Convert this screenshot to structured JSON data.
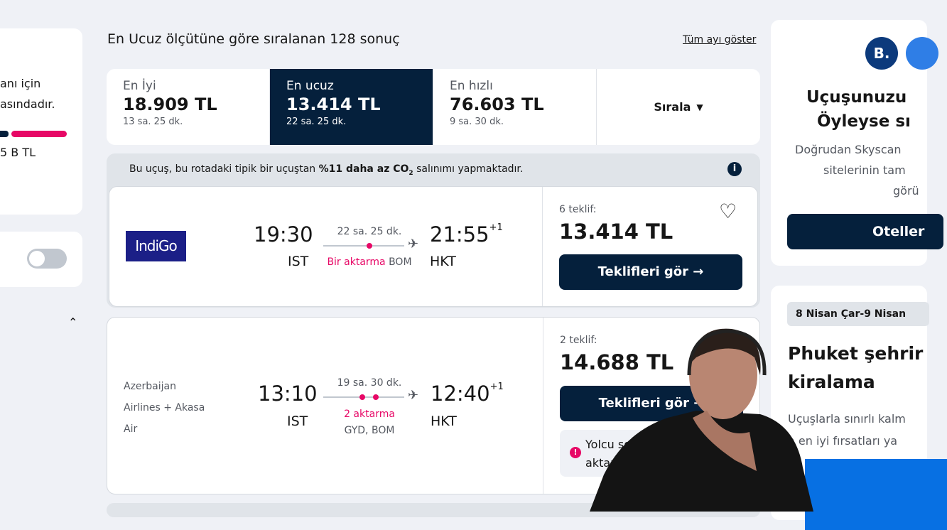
{
  "left_panel": {
    "line1": "anı için",
    "line2": "asındadır.",
    "price_range": "5 B TL",
    "colors": {
      "bar_dark": "#05203c",
      "bar_pink": "#e70866"
    }
  },
  "results_heading": "En Ucuz ölçütüne göre sıralanan 128 sonuç",
  "show_month_link": "Tüm ayı göster",
  "sort_tabs": [
    {
      "label": "En İyi",
      "price": "18.909 TL",
      "duration": "13 sa. 25 dk.",
      "active": false
    },
    {
      "label": "En ucuz",
      "price": "13.414 TL",
      "duration": "22 sa. 25 dk.",
      "active": true
    },
    {
      "label": "En hızlı",
      "price": "76.603 TL",
      "duration": "9 sa. 30 dk.",
      "active": false
    }
  ],
  "sort_button": "Sırala",
  "eco_banner": {
    "prefix": "Bu uçuş, bu rotadaki tipik bir uçuştan ",
    "bold": "%11 daha az CO",
    "sub": "2",
    "suffix": " salınımı yapmaktadır."
  },
  "flights": [
    {
      "airline": "IndiGo",
      "depart_time": "19:30",
      "depart_code": "IST",
      "arrive_time": "21:55",
      "arrive_offset": "+1",
      "arrive_code": "HKT",
      "duration": "22 sa. 25 dk.",
      "stops": "Bir aktarma",
      "stop_airports": "BOM",
      "offers": "6 teklif:",
      "price": "13.414 TL",
      "button": "Teklifleri gör →"
    },
    {
      "airline_lines": [
        "Azerbaijan",
        "Airlines + Akasa",
        "Air"
      ],
      "depart_time": "13:10",
      "depart_code": "IST",
      "arrive_time": "12:40",
      "arrive_offset": "+1",
      "arrive_code": "HKT",
      "duration": "19 sa. 30 dk.",
      "stops": "2 aktarma",
      "stop_airports": "GYD, BOM",
      "offers": "2 teklif:",
      "price": "14.688 TL",
      "button": "Teklifleri gör →",
      "warning": "Yolcu so... aktarm..."
    }
  ],
  "hotel_promo": {
    "logo": "B.",
    "title_lines": [
      "Uçuşunuzu",
      "Öyleyse sı"
    ],
    "sub_lines": [
      "Doğrudan Skyscan",
      "sitelerinin tam",
      "görü"
    ],
    "button": "Oteller"
  },
  "car_promo": {
    "date_chip": "8 Nisan Çar-9 Nisan",
    "title_lines": [
      "Phuket şehrir",
      "kiralama"
    ],
    "sub_lines": [
      "Uçuşlarla sınırlı kalm",
      "a en iyi fırsatları ya"
    ]
  },
  "accent": "#05203c",
  "pink": "#e70866"
}
